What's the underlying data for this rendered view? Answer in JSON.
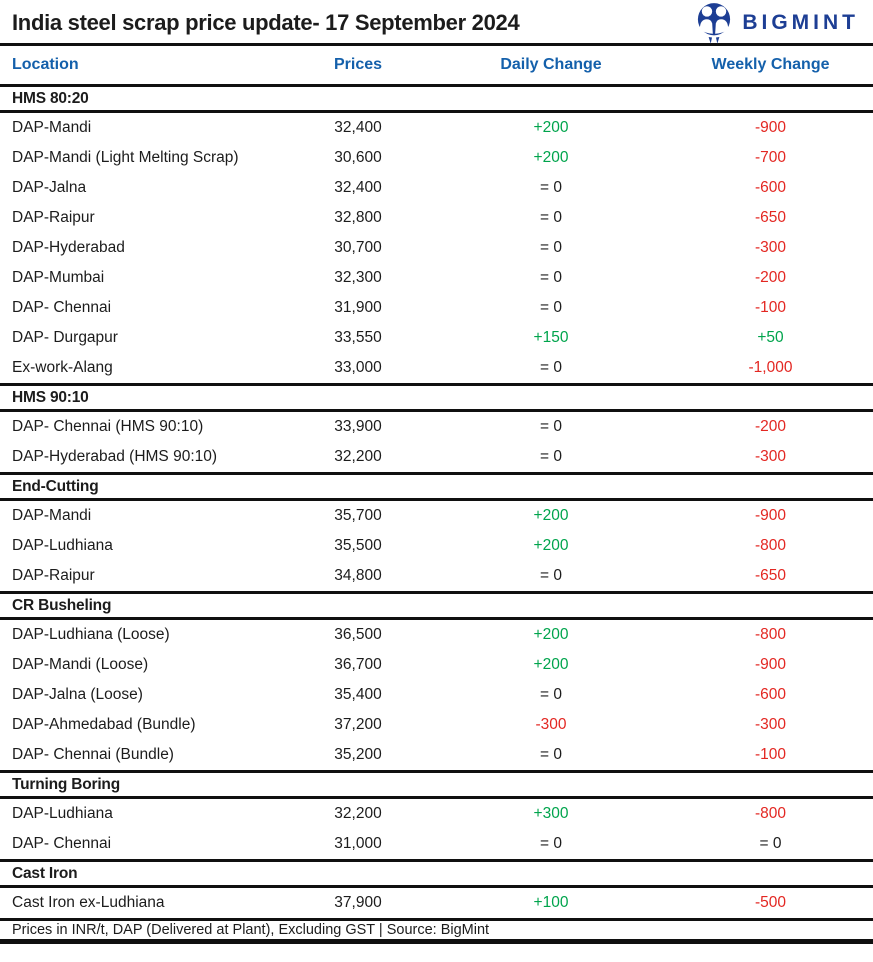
{
  "header": {
    "logo_text": "BIGMINT"
  },
  "colors": {
    "accent_blue": "#1460ab",
    "logo_blue": "#1d3e94",
    "positive_green": "#00a44c",
    "negative_red": "#e32722",
    "text_black": "#1c1c1c",
    "line_black": "#101010"
  },
  "chart_data": {
    "type": "table",
    "title": "India steel scrap price update- 17 September 2024",
    "columns": [
      "Location",
      "Prices",
      "Daily Change",
      "Weekly Change"
    ],
    "units_note": "Prices in INR/t, DAP (Delivered at Plant), Excluding GST | Source: BigMint",
    "sections": [
      {
        "name": "HMS 80:20",
        "rows": [
          {
            "location": "DAP-Mandi",
            "price": "32,400",
            "daily": "+200",
            "weekly": "-900"
          },
          {
            "location": "DAP-Mandi (Light Melting Scrap)",
            "price": "30,600",
            "daily": "+200",
            "weekly": "-700"
          },
          {
            "location": "DAP-Jalna",
            "price": "32,400",
            "daily": "= 0",
            "weekly": "-600"
          },
          {
            "location": "DAP-Raipur",
            "price": "32,800",
            "daily": "= 0",
            "weekly": "-650"
          },
          {
            "location": "DAP-Hyderabad",
            "price": "30,700",
            "daily": "= 0",
            "weekly": "-300"
          },
          {
            "location": "DAP-Mumbai",
            "price": "32,300",
            "daily": "= 0",
            "weekly": "-200"
          },
          {
            "location": "DAP- Chennai",
            "price": "31,900",
            "daily": "= 0",
            "weekly": "-100"
          },
          {
            "location": "DAP- Durgapur",
            "price": "33,550",
            "daily": "+150",
            "weekly": "+50"
          },
          {
            "location": "Ex-work-Alang",
            "price": "33,000",
            "daily": "= 0",
            "weekly": "-1,000"
          }
        ]
      },
      {
        "name": "HMS 90:10",
        "rows": [
          {
            "location": "DAP- Chennai  (HMS 90:10)",
            "price": "33,900",
            "daily": "= 0",
            "weekly": "-200"
          },
          {
            "location": "DAP-Hyderabad (HMS 90:10)",
            "price": "32,200",
            "daily": "= 0",
            "weekly": "-300"
          }
        ]
      },
      {
        "name": "End-Cutting",
        "rows": [
          {
            "location": "DAP-Mandi",
            "price": "35,700",
            "daily": "+200",
            "weekly": "-900"
          },
          {
            "location": "DAP-Ludhiana",
            "price": "35,500",
            "daily": "+200",
            "weekly": "-800"
          },
          {
            "location": "DAP-Raipur",
            "price": "34,800",
            "daily": "= 0",
            "weekly": "-650"
          }
        ]
      },
      {
        "name": "CR Busheling",
        "rows": [
          {
            "location": "DAP-Ludhiana (Loose)",
            "price": "36,500",
            "daily": "+200",
            "weekly": "-800"
          },
          {
            "location": "DAP-Mandi (Loose)",
            "price": "36,700",
            "daily": "+200",
            "weekly": "-900"
          },
          {
            "location": "DAP-Jalna (Loose)",
            "price": "35,400",
            "daily": "= 0",
            "weekly": "-600"
          },
          {
            "location": "DAP-Ahmedabad (Bundle)",
            "price": "37,200",
            "daily": "-300",
            "weekly": "-300"
          },
          {
            "location": "DAP- Chennai (Bundle)",
            "price": "35,200",
            "daily": "= 0",
            "weekly": "-100"
          }
        ]
      },
      {
        "name": "Turning Boring",
        "rows": [
          {
            "location": "DAP-Ludhiana",
            "price": "32,200",
            "daily": "+300",
            "weekly": "-800"
          },
          {
            "location": "DAP- Chennai",
            "price": "31,000",
            "daily": "= 0",
            "weekly": "= 0"
          }
        ]
      },
      {
        "name": "Cast Iron",
        "rows": [
          {
            "location": "Cast Iron ex-Ludhiana",
            "price": "37,900",
            "daily": "+100",
            "weekly": "-500"
          }
        ]
      }
    ]
  }
}
